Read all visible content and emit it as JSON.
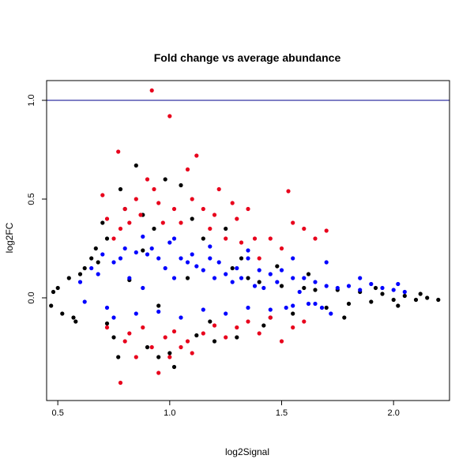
{
  "chart_data": {
    "type": "scatter",
    "title": "Fold change vs average abundance",
    "xlabel": "log2Signal",
    "ylabel": "log2FC",
    "xlim": [
      0.45,
      2.25
    ],
    "ylim": [
      -0.52,
      1.1
    ],
    "xticks": [
      0.5,
      1.0,
      1.5,
      2.0
    ],
    "xtick_labels": [
      "0.5",
      "1.0",
      "1.5",
      "2.0"
    ],
    "yticks": [
      0.0,
      0.5,
      1.0
    ],
    "ytick_labels": [
      "0.0",
      "0.5",
      "1.0"
    ],
    "reference_line": {
      "y": 1.0,
      "color": "#00008B"
    },
    "grid": false,
    "series": [
      {
        "color": "#000000",
        "points": [
          [
            0.47,
            -0.04
          ],
          [
            0.48,
            0.03
          ],
          [
            0.5,
            0.05
          ],
          [
            0.52,
            -0.08
          ],
          [
            0.55,
            0.1
          ],
          [
            0.57,
            -0.1
          ],
          [
            0.6,
            0.12
          ],
          [
            0.62,
            0.15
          ],
          [
            0.65,
            0.2
          ],
          [
            0.67,
            0.25
          ],
          [
            0.7,
            0.38
          ],
          [
            0.72,
            0.3
          ],
          [
            0.75,
            -0.2
          ],
          [
            0.77,
            -0.3
          ],
          [
            0.78,
            0.55
          ],
          [
            0.8,
            0.45
          ],
          [
            0.85,
            0.67
          ],
          [
            0.88,
            0.42
          ],
          [
            0.9,
            -0.25
          ],
          [
            0.93,
            0.35
          ],
          [
            0.95,
            -0.3
          ],
          [
            0.98,
            0.6
          ],
          [
            1.0,
            -0.28
          ],
          [
            1.02,
            -0.35
          ],
          [
            1.05,
            0.57
          ],
          [
            1.1,
            0.4
          ],
          [
            1.15,
            0.3
          ],
          [
            1.2,
            -0.22
          ],
          [
            1.25,
            0.35
          ],
          [
            1.3,
            -0.2
          ],
          [
            1.35,
            0.1
          ],
          [
            1.4,
            0.08
          ],
          [
            1.45,
            -0.1
          ],
          [
            1.5,
            0.06
          ],
          [
            1.55,
            -0.08
          ],
          [
            1.6,
            0.05
          ],
          [
            1.65,
            0.04
          ],
          [
            1.7,
            -0.05
          ],
          [
            1.75,
            0.04
          ],
          [
            1.8,
            -0.03
          ],
          [
            1.85,
            0.03
          ],
          [
            1.9,
            -0.02
          ],
          [
            1.95,
            0.02
          ],
          [
            2.0,
            -0.01
          ],
          [
            2.05,
            0.01
          ],
          [
            2.1,
            -0.01
          ],
          [
            2.15,
            0.0
          ],
          [
            2.2,
            -0.01
          ],
          [
            0.72,
            -0.13
          ],
          [
            0.82,
            0.09
          ],
          [
            0.95,
            -0.04
          ],
          [
            1.08,
            0.1
          ],
          [
            1.18,
            -0.12
          ],
          [
            1.28,
            0.15
          ],
          [
            1.42,
            -0.14
          ],
          [
            1.62,
            0.12
          ],
          [
            1.78,
            -0.1
          ],
          [
            1.92,
            0.05
          ],
          [
            2.02,
            -0.04
          ],
          [
            2.12,
            0.02
          ],
          [
            0.58,
            -0.12
          ],
          [
            0.68,
            0.18
          ],
          [
            0.88,
            0.24
          ],
          [
            1.12,
            -0.19
          ],
          [
            1.32,
            0.2
          ],
          [
            1.48,
            0.16
          ]
        ]
      },
      {
        "color": "#0000FF",
        "points": [
          [
            0.6,
            0.08
          ],
          [
            0.62,
            -0.02
          ],
          [
            0.65,
            0.15
          ],
          [
            0.68,
            0.12
          ],
          [
            0.7,
            0.22
          ],
          [
            0.72,
            -0.05
          ],
          [
            0.75,
            0.18
          ],
          [
            0.78,
            0.2
          ],
          [
            0.8,
            0.25
          ],
          [
            0.82,
            0.1
          ],
          [
            0.85,
            0.23
          ],
          [
            0.88,
            0.05
          ],
          [
            0.9,
            0.22
          ],
          [
            0.92,
            0.25
          ],
          [
            0.95,
            0.2
          ],
          [
            0.98,
            0.15
          ],
          [
            1.0,
            0.28
          ],
          [
            1.02,
            0.1
          ],
          [
            1.05,
            0.2
          ],
          [
            1.08,
            0.18
          ],
          [
            1.1,
            0.22
          ],
          [
            1.12,
            0.16
          ],
          [
            1.15,
            0.14
          ],
          [
            1.18,
            0.2
          ],
          [
            1.2,
            0.1
          ],
          [
            1.22,
            0.18
          ],
          [
            1.25,
            0.12
          ],
          [
            1.28,
            0.08
          ],
          [
            1.3,
            0.15
          ],
          [
            1.32,
            0.1
          ],
          [
            1.35,
            0.2
          ],
          [
            1.38,
            0.06
          ],
          [
            1.4,
            0.14
          ],
          [
            1.42,
            0.05
          ],
          [
            1.45,
            0.12
          ],
          [
            1.48,
            0.08
          ],
          [
            1.5,
            0.14
          ],
          [
            1.52,
            -0.05
          ],
          [
            1.55,
            0.1
          ],
          [
            1.58,
            0.03
          ],
          [
            1.6,
            0.1
          ],
          [
            1.62,
            -0.03
          ],
          [
            1.65,
            0.08
          ],
          [
            1.68,
            -0.05
          ],
          [
            1.7,
            0.06
          ],
          [
            1.72,
            -0.08
          ],
          [
            1.75,
            0.05
          ],
          [
            1.8,
            0.06
          ],
          [
            1.85,
            0.04
          ],
          [
            1.9,
            0.07
          ],
          [
            1.95,
            0.05
          ],
          [
            2.0,
            0.04
          ],
          [
            2.05,
            0.03
          ],
          [
            0.75,
            -0.1
          ],
          [
            0.85,
            -0.08
          ],
          [
            0.95,
            -0.07
          ],
          [
            1.05,
            -0.1
          ],
          [
            1.15,
            -0.06
          ],
          [
            1.25,
            -0.08
          ],
          [
            1.35,
            -0.05
          ],
          [
            1.45,
            -0.06
          ],
          [
            1.55,
            -0.04
          ],
          [
            1.65,
            -0.03
          ],
          [
            0.88,
            0.31
          ],
          [
            1.02,
            0.3
          ],
          [
            1.18,
            0.26
          ],
          [
            1.35,
            0.24
          ],
          [
            1.55,
            0.2
          ],
          [
            1.7,
            0.18
          ],
          [
            1.85,
            0.1
          ],
          [
            2.02,
            0.07
          ]
        ]
      },
      {
        "color": "#E8001C",
        "points": [
          [
            0.7,
            0.52
          ],
          [
            0.72,
            0.4
          ],
          [
            0.75,
            0.3
          ],
          [
            0.77,
            0.74
          ],
          [
            0.78,
            0.35
          ],
          [
            0.8,
            0.45
          ],
          [
            0.82,
            0.38
          ],
          [
            0.85,
            0.5
          ],
          [
            0.87,
            0.42
          ],
          [
            0.9,
            0.6
          ],
          [
            0.92,
            1.05
          ],
          [
            0.93,
            0.55
          ],
          [
            0.95,
            0.48
          ],
          [
            0.97,
            0.38
          ],
          [
            1.0,
            0.92
          ],
          [
            1.02,
            0.45
          ],
          [
            1.05,
            0.38
          ],
          [
            1.08,
            0.65
          ],
          [
            1.1,
            0.5
          ],
          [
            1.12,
            0.72
          ],
          [
            1.15,
            0.45
          ],
          [
            1.18,
            0.35
          ],
          [
            1.2,
            0.42
          ],
          [
            1.22,
            0.55
          ],
          [
            1.25,
            0.3
          ],
          [
            1.28,
            0.48
          ],
          [
            1.3,
            0.4
          ],
          [
            1.32,
            0.28
          ],
          [
            1.35,
            0.45
          ],
          [
            1.38,
            0.3
          ],
          [
            1.4,
            0.2
          ],
          [
            1.45,
            0.3
          ],
          [
            1.5,
            0.25
          ],
          [
            1.53,
            0.54
          ],
          [
            1.55,
            0.38
          ],
          [
            1.6,
            0.35
          ],
          [
            1.65,
            0.3
          ],
          [
            1.7,
            0.34
          ],
          [
            0.72,
            -0.15
          ],
          [
            0.78,
            -0.43
          ],
          [
            0.8,
            -0.22
          ],
          [
            0.82,
            -0.18
          ],
          [
            0.85,
            -0.3
          ],
          [
            0.88,
            -0.15
          ],
          [
            0.92,
            -0.25
          ],
          [
            0.95,
            -0.38
          ],
          [
            0.98,
            -0.2
          ],
          [
            1.0,
            -0.3
          ],
          [
            1.02,
            -0.17
          ],
          [
            1.05,
            -0.25
          ],
          [
            1.08,
            -0.22
          ],
          [
            1.1,
            -0.28
          ],
          [
            1.15,
            -0.18
          ],
          [
            1.2,
            -0.14
          ],
          [
            1.25,
            -0.2
          ],
          [
            1.3,
            -0.15
          ],
          [
            1.35,
            -0.12
          ],
          [
            1.4,
            -0.18
          ],
          [
            1.45,
            -0.1
          ],
          [
            1.5,
            -0.22
          ],
          [
            1.55,
            -0.15
          ],
          [
            1.6,
            -0.12
          ]
        ]
      }
    ]
  }
}
